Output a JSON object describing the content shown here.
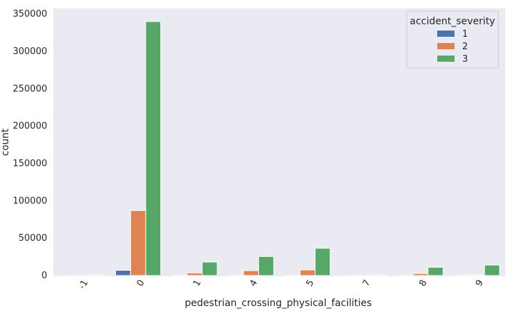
{
  "chart_data": {
    "type": "bar",
    "title": "",
    "xlabel": "pedestrian_crossing_physical_facilities",
    "ylabel": "count",
    "categories": [
      "-1",
      "0",
      "1",
      "4",
      "5",
      "7",
      "8",
      "9"
    ],
    "ylim": [
      0,
      350000
    ],
    "yticks": [
      0,
      50000,
      100000,
      150000,
      200000,
      250000,
      300000,
      350000
    ],
    "grid": false,
    "legend": {
      "title": "accident_severity",
      "placement": "top-right"
    },
    "series": [
      {
        "name": "1",
        "color": "#4c72b0",
        "values": [
          20,
          7000,
          100,
          150,
          150,
          5,
          60,
          80
        ]
      },
      {
        "name": "2",
        "color": "#dd8452",
        "values": [
          150,
          87000,
          3500,
          6500,
          7500,
          50,
          2700,
          1000
        ]
      },
      {
        "name": "3",
        "color": "#55a868",
        "values": [
          900,
          340000,
          18000,
          25500,
          36500,
          400,
          11000,
          14000
        ]
      }
    ]
  }
}
